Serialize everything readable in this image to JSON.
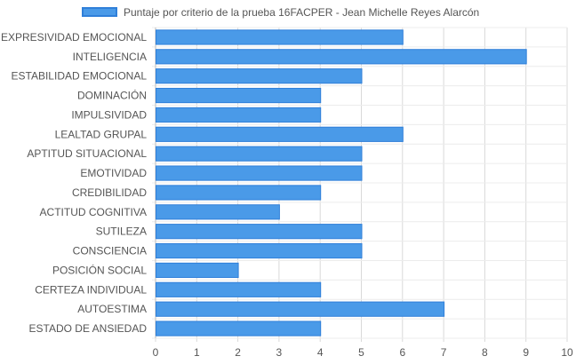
{
  "chart_data": {
    "type": "bar",
    "orientation": "horizontal",
    "categories": [
      "EXPRESIVIDAD EMOCIONAL",
      "INTELIGENCIA",
      "ESTABILIDAD EMOCIONAL",
      "DOMINACIÓN",
      "IMPULSIVIDAD",
      "LEALTAD GRUPAL",
      "APTITUD SITUACIONAL",
      "EMOTIVIDAD",
      "CREDIBILIDAD",
      "ACTITUD COGNITIVA",
      "SUTILEZA",
      "CONSCIENCIA",
      "POSICIÓN SOCIAL",
      "CERTEZA INDIVIDUAL",
      "AUTOESTIMA",
      "ESTADO DE ANSIEDAD"
    ],
    "series": [
      {
        "name": "Puntaje por criterio de la prueba 16FACPER - Jean Michelle Reyes Alarcón",
        "values": [
          6,
          9,
          5,
          4,
          4,
          6,
          5,
          5,
          4,
          3,
          5,
          5,
          2,
          4,
          7,
          4
        ]
      }
    ],
    "xlim": [
      0,
      10
    ],
    "xticks": [
      "0",
      "1",
      "2",
      "3",
      "4",
      "5",
      "6",
      "7",
      "8",
      "9",
      "10"
    ],
    "grid": true,
    "legend_position": "top-center",
    "colors": {
      "bar_fill": "#4a9ae8",
      "bar_border": "#2f7fd9",
      "grid": "#d9d9d9",
      "text": "#555555"
    }
  }
}
